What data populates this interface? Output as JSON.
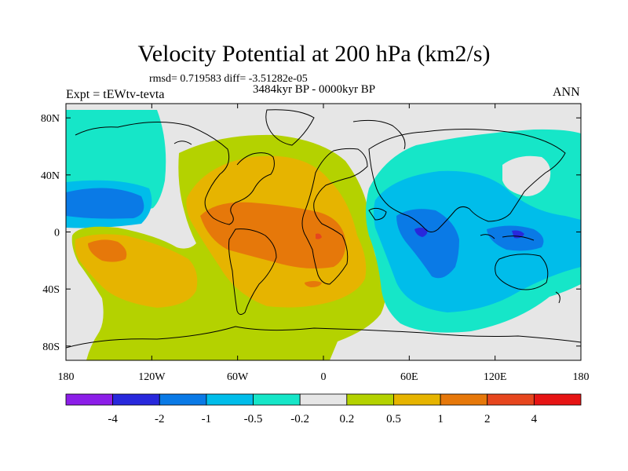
{
  "chart_data": {
    "type": "map-contour",
    "title": "Velocity Potential at 200 hPa (km2/s)",
    "stats_text": "rmsd= 0.719583  diff= -3.51282e-05",
    "period": "3484kyr BP - 0000kyr BP",
    "experiment": "Expt = tEWtv-tevta",
    "season": "ANN",
    "xlim": [
      -180,
      180
    ],
    "ylim": [
      -90,
      90
    ],
    "x_ticks": [
      {
        "value": -180,
        "label": "180"
      },
      {
        "value": -120,
        "label": "120W"
      },
      {
        "value": -60,
        "label": "60W"
      },
      {
        "value": 0,
        "label": "0"
      },
      {
        "value": 60,
        "label": "60E"
      },
      {
        "value": 120,
        "label": "120E"
      },
      {
        "value": 180,
        "label": "180"
      }
    ],
    "y_ticks": [
      {
        "value": 80,
        "label": "80N"
      },
      {
        "value": 40,
        "label": "40N"
      },
      {
        "value": 0,
        "label": "0"
      },
      {
        "value": -40,
        "label": "40S"
      },
      {
        "value": -80,
        "label": "80S"
      }
    ],
    "colorbar": {
      "levels": [
        "-4",
        "-2",
        "-1",
        "-0.5",
        "-0.2",
        "0.2",
        "0.5",
        "1",
        "2",
        "4"
      ],
      "colors": [
        "#8c1ee8",
        "#2828dc",
        "#0a7ae6",
        "#00bdea",
        "#16e6c8",
        "#e6e6e6",
        "#b4d200",
        "#e6b400",
        "#e6780a",
        "#e6461e",
        "#e61414"
      ]
    }
  }
}
